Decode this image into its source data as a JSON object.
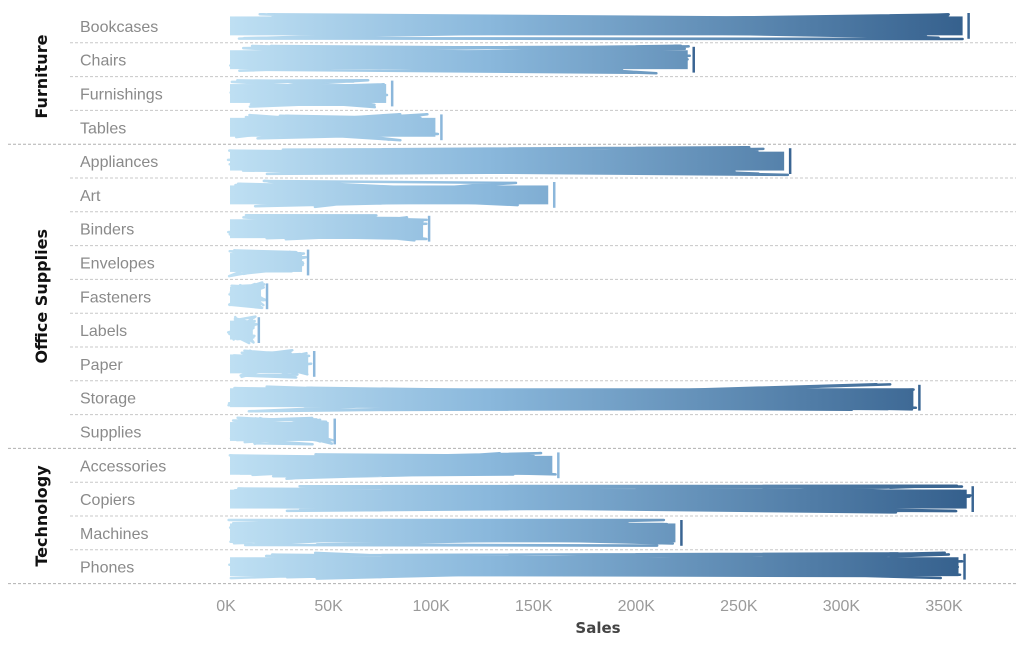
{
  "chart_data": {
    "type": "bar",
    "style": "hand-scribbled horizontal bars with color gradient from light blue to dark blue and end cap",
    "xlabel": "Sales",
    "xlim": [
      0,
      370000
    ],
    "x_ticks": [
      {
        "value": 0,
        "label": "0K"
      },
      {
        "value": 50000,
        "label": "50K"
      },
      {
        "value": 100000,
        "label": "100K"
      },
      {
        "value": 150000,
        "label": "150K"
      },
      {
        "value": 200000,
        "label": "200K"
      },
      {
        "value": 250000,
        "label": "250K"
      },
      {
        "value": 300000,
        "label": "300K"
      },
      {
        "value": 350000,
        "label": "350K"
      }
    ],
    "colors": {
      "low": "#b9dbf0",
      "high": "#3a6593",
      "grid": "#c8c8c8",
      "divider": "#b0b0b0"
    },
    "groups": [
      {
        "name": "Furniture",
        "categories": [
          "Bookcases",
          "Chairs",
          "Furnishings",
          "Tables"
        ],
        "values": [
          362000,
          228000,
          81000,
          105000
        ]
      },
      {
        "name": "Office Supplies",
        "categories": [
          "Appliances",
          "Art",
          "Binders",
          "Envelopes",
          "Fasteners",
          "Labels",
          "Paper",
          "Storage",
          "Supplies"
        ],
        "values": [
          275000,
          160000,
          99000,
          40000,
          20000,
          16000,
          43000,
          338000,
          53000
        ]
      },
      {
        "name": "Technology",
        "categories": [
          "Accessories",
          "Copiers",
          "Machines",
          "Phones"
        ],
        "values": [
          162000,
          364000,
          222000,
          360000
        ]
      }
    ]
  }
}
